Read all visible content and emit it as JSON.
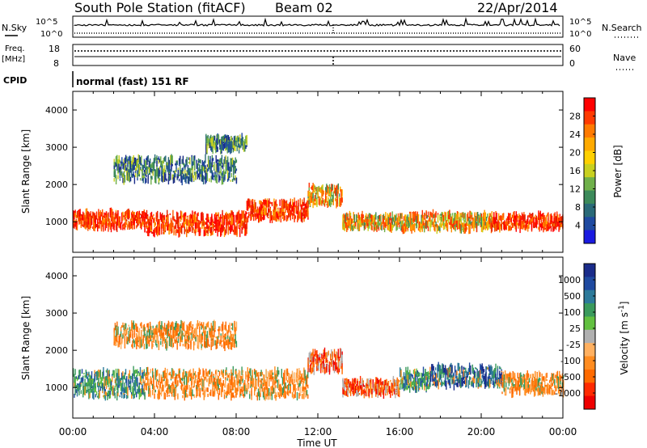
{
  "header": {
    "station": "South Pole Station (fitACF)",
    "beam": "Beam 02",
    "date": "22/Apr/2014"
  },
  "top_panels": {
    "nsky_label": "N.Sky",
    "nsearch_label": "N.Search",
    "noise_tick_high": "10^5",
    "noise_tick_low": "10^0",
    "freq_label_line1": "Freq.",
    "freq_label_line2": "[MHz]",
    "freq_ticks": [
      "18",
      "8"
    ],
    "nave_label": "Nave",
    "nave_ticks": [
      "60",
      "0"
    ],
    "cpid_label": "CPID",
    "cpid_value": "normal (fast) 151 RF"
  },
  "colors": {
    "frame": "#000000",
    "scatter_red": "#ee1c1c",
    "scatter_orange": "#f28c28",
    "scatter_green": "#3a9a5c",
    "scatter_blue": "#1f3fa0"
  },
  "chart_data": [
    {
      "type": "heatmap",
      "name": "power",
      "title": "",
      "xlabel": "Time UT",
      "ylabel": "Slant Range [km]",
      "xlim": [
        0,
        24
      ],
      "ylim": [
        180,
        4500
      ],
      "x_ticks": [
        "00:00",
        "04:00",
        "08:00",
        "12:00",
        "16:00",
        "20:00",
        "00:00"
      ],
      "y_ticks": [
        "1000",
        "2000",
        "3000",
        "4000"
      ],
      "colorbar": {
        "label": "Power [dB]",
        "ticks": [
          "28",
          "24",
          "20",
          "16",
          "12",
          "8",
          "4"
        ],
        "colors": [
          "#ff0000",
          "#ff3a00",
          "#ff7a00",
          "#ffaa00",
          "#ffd000",
          "#c8d020",
          "#6fb04a",
          "#3c8a5a",
          "#2a6a78",
          "#1f4aa0",
          "#1a1ae0"
        ]
      },
      "bands": [
        {
          "x_start": 0.0,
          "x_end": 3.5,
          "range_center": 1050,
          "range_width": 420,
          "level": "high"
        },
        {
          "x_start": 3.5,
          "x_end": 8.5,
          "range_center": 950,
          "range_width": 520,
          "level": "high"
        },
        {
          "x_start": 8.5,
          "x_end": 11.5,
          "range_center": 1300,
          "range_width": 480,
          "level": "high"
        },
        {
          "x_start": 11.5,
          "x_end": 13.2,
          "range_center": 1700,
          "range_width": 500,
          "level": "medium"
        },
        {
          "x_start": 13.2,
          "x_end": 16.0,
          "range_center": 1000,
          "range_width": 360,
          "level": "medium"
        },
        {
          "x_start": 16.0,
          "x_end": 20.5,
          "range_center": 1000,
          "range_width": 420,
          "level": "medium"
        },
        {
          "x_start": 20.5,
          "x_end": 24.0,
          "range_center": 1000,
          "range_width": 380,
          "level": "high"
        },
        {
          "x_start": 2.0,
          "x_end": 8.0,
          "range_center": 2400,
          "range_width": 600,
          "level": "low"
        },
        {
          "x_start": 6.5,
          "x_end": 8.5,
          "range_center": 3100,
          "range_width": 350,
          "level": "low"
        }
      ]
    },
    {
      "type": "heatmap",
      "name": "velocity",
      "title": "",
      "xlabel": "Time UT",
      "ylabel": "Slant Range [km]",
      "xlim": [
        0,
        24
      ],
      "ylim": [
        180,
        4500
      ],
      "x_ticks": [
        "00:00",
        "04:00",
        "08:00",
        "12:00",
        "16:00",
        "20:00",
        "00:00"
      ],
      "y_ticks": [
        "1000",
        "2000",
        "3000",
        "4000"
      ],
      "colorbar": {
        "label": "Velocity [m s^-1]",
        "ticks": [
          "1000",
          "500",
          "100",
          "25",
          "-25",
          "-100",
          "-500",
          "-1000"
        ],
        "colors": [
          "#1a2c8a",
          "#1f4aa0",
          "#2d7a9a",
          "#3a9a5c",
          "#62c040",
          "#b0b0b0",
          "#ffb060",
          "#ff8c20",
          "#ff6a00",
          "#ff2a00",
          "#ee0000"
        ]
      },
      "bands": [
        {
          "x_start": 0.0,
          "x_end": 3.5,
          "range_center": 1100,
          "range_width": 700,
          "level": "green"
        },
        {
          "x_start": 3.5,
          "x_end": 11.5,
          "range_center": 1100,
          "range_width": 700,
          "level": "orange"
        },
        {
          "x_start": 11.5,
          "x_end": 13.2,
          "range_center": 1700,
          "range_width": 500,
          "level": "red"
        },
        {
          "x_start": 13.2,
          "x_end": 16.0,
          "range_center": 1000,
          "range_width": 380,
          "level": "red"
        },
        {
          "x_start": 16.0,
          "x_end": 17.5,
          "range_center": 1200,
          "range_width": 500,
          "level": "green"
        },
        {
          "x_start": 17.5,
          "x_end": 21.0,
          "range_center": 1300,
          "range_width": 520,
          "level": "blue"
        },
        {
          "x_start": 21.0,
          "x_end": 24.0,
          "range_center": 1100,
          "range_width": 520,
          "level": "orange"
        },
        {
          "x_start": 2.0,
          "x_end": 8.0,
          "range_center": 2400,
          "range_width": 600,
          "level": "orange"
        }
      ]
    }
  ]
}
